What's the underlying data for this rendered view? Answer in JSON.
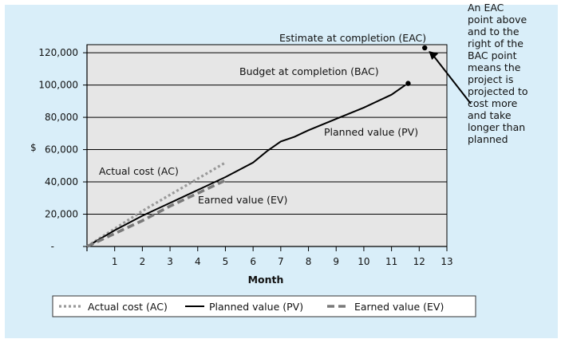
{
  "chart_data": {
    "type": "line",
    "title": "",
    "xlabel": "Month",
    "ylabel": "$",
    "xlim": [
      0,
      13
    ],
    "ylim": [
      0,
      125000
    ],
    "x_ticks": [
      1,
      2,
      3,
      4,
      5,
      6,
      7,
      8,
      9,
      10,
      11,
      12,
      13
    ],
    "y_ticks": [
      {
        "value": 0,
        "label": "-"
      },
      {
        "value": 20000,
        "label": "20,000"
      },
      {
        "value": 40000,
        "label": "40,000"
      },
      {
        "value": 60000,
        "label": "60,000"
      },
      {
        "value": 80000,
        "label": "80,000"
      },
      {
        "value": 100000,
        "label": "100,000"
      },
      {
        "value": 120000,
        "label": "120,000"
      }
    ],
    "grid": true,
    "series": [
      {
        "name": "Actual cost (AC)",
        "style": "dotted",
        "color": "#9a9a9a",
        "x": [
          0,
          1,
          2,
          3,
          4,
          5
        ],
        "y": [
          0,
          11000,
          22000,
          32000,
          42000,
          52000
        ]
      },
      {
        "name": "Planned value (PV)",
        "style": "solid",
        "color": "#000000",
        "x": [
          0,
          1,
          2,
          3,
          4,
          5,
          6,
          6.5,
          7,
          7.5,
          8,
          9,
          10,
          11,
          11.5
        ],
        "y": [
          0,
          10000,
          19000,
          27000,
          35000,
          43000,
          52000,
          59000,
          65000,
          68000,
          72000,
          79000,
          86000,
          94000,
          100000
        ]
      },
      {
        "name": "Earned value (EV)",
        "style": "dashed",
        "color": "#7a7a7a",
        "x": [
          0,
          1,
          2,
          3,
          4,
          5
        ],
        "y": [
          0,
          8000,
          16000,
          25000,
          33000,
          41000
        ]
      }
    ],
    "points": [
      {
        "label": "Budget at completion (BAC)",
        "x": 11.6,
        "y": 101000
      },
      {
        "label": "Estimate at completion (EAC)",
        "x": 12.2,
        "y": 123000
      }
    ],
    "annotations": {
      "eac": "Estimate at completion (EAC)",
      "bac": "Budget at completion (BAC)",
      "pv": "Planned value (PV)",
      "ac": "Actual cost (AC)",
      "ev": "Earned value (EV)",
      "note_lines": [
        "An EAC",
        "point above",
        "and to the",
        "right of the",
        "BAC point",
        "means the",
        "project is",
        "projected to",
        "cost more",
        "and take",
        "longer than",
        "planned"
      ]
    },
    "legend": {
      "placement": "bottom",
      "entries": [
        "Actual cost (AC)",
        "Planned value (PV)",
        "Earned value (EV)"
      ]
    }
  }
}
